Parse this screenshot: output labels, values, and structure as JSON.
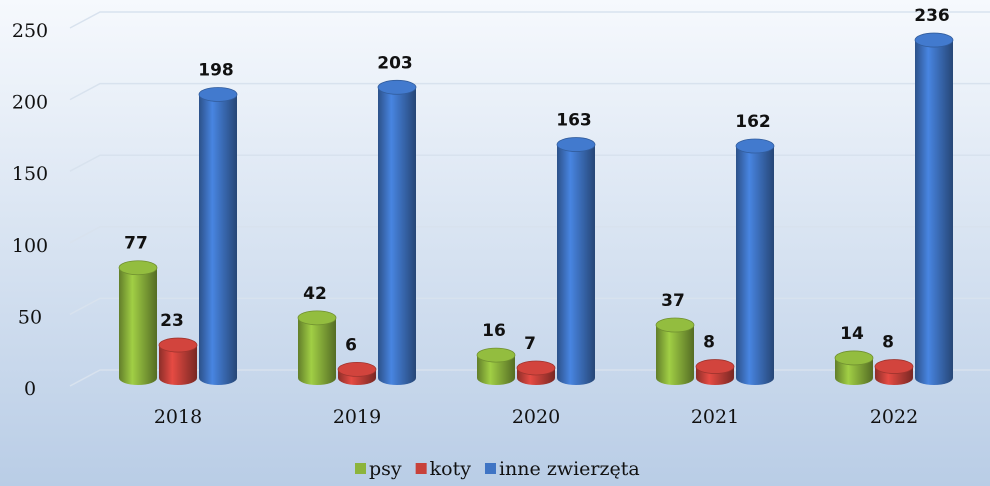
{
  "chart_data": {
    "type": "bar3d",
    "categories": [
      "2018",
      "2019",
      "2020",
      "2021",
      "2022"
    ],
    "series": [
      {
        "name": "psy",
        "color": "#8cb43c",
        "values": [
          77,
          42,
          16,
          37,
          14
        ]
      },
      {
        "name": "koty",
        "color": "#c8413a",
        "values": [
          23,
          6,
          7,
          8,
          8
        ]
      },
      {
        "name": "inne zwierzęta",
        "color": "#3f74c4",
        "values": [
          198,
          203,
          163,
          162,
          236
        ]
      }
    ],
    "ylim": [
      0,
      250
    ],
    "yticks": [
      0,
      50,
      100,
      150,
      200,
      250
    ],
    "grid": true,
    "legend": "bottom"
  }
}
